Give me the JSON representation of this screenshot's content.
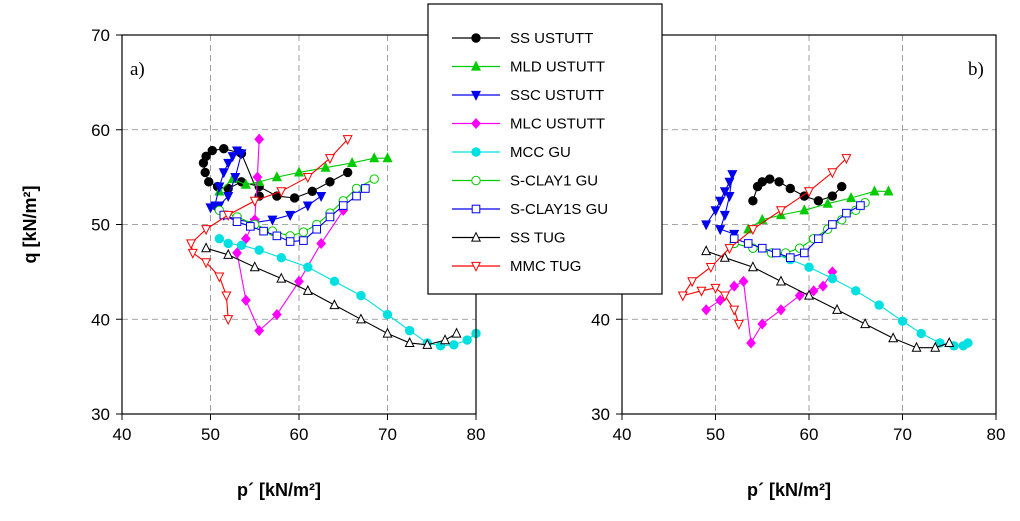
{
  "chart_data": [
    {
      "panel_label": "a)",
      "type": "line",
      "xlabel": "p´ [kN/m²]",
      "ylabel": "q [kN/m²]",
      "xlim": [
        40,
        80
      ],
      "ylim": [
        30,
        70
      ],
      "xticks": [
        "40",
        "50",
        "60",
        "70",
        "80"
      ],
      "yticks": [
        "30",
        "40",
        "50",
        "60",
        "70"
      ],
      "grid": true,
      "series": [
        {
          "name": "SS USTUTT",
          "color": "#000000",
          "marker": "circle",
          "filled": true,
          "x": [
            55.5,
            53.5,
            51.5,
            50.2,
            49.5,
            49.2,
            49.4,
            49.8,
            50.8,
            52.0,
            53.5,
            55.5,
            57.5,
            59.5,
            61.5,
            63.5,
            65.5
          ],
          "y": [
            53.0,
            57.5,
            58.0,
            57.8,
            57.2,
            56.5,
            55.5,
            54.5,
            54.0,
            53.8,
            54.5,
            54.0,
            53.0,
            52.8,
            53.5,
            54.5,
            55.5
          ]
        },
        {
          "name": "MLD USTUTT",
          "color": "#00cc00",
          "marker": "triangle",
          "filled": true,
          "x": [
            51.0,
            52.5,
            54.0,
            55.5,
            57.5,
            60.0,
            63.0,
            66.0,
            68.5,
            70.0
          ],
          "y": [
            53.5,
            54.8,
            54.2,
            54.5,
            55.0,
            55.5,
            56.0,
            56.5,
            57.0,
            57.0
          ]
        },
        {
          "name": "SSC USTUTT",
          "color": "#0000ee",
          "marker": "triangle-down",
          "filled": true,
          "x": [
            50.5,
            51.0,
            51.5,
            52.0,
            52.5,
            53.0,
            53.5,
            52.8,
            52.0,
            51.0,
            50.0,
            51.5,
            53.0,
            55.0,
            57.0,
            59.0,
            61.0,
            62.5
          ],
          "y": [
            52.0,
            54.0,
            55.5,
            56.5,
            57.2,
            57.8,
            57.5,
            55.0,
            53.0,
            52.0,
            51.8,
            51.0,
            50.5,
            50.2,
            50.5,
            51.0,
            52.0,
            53.0
          ]
        },
        {
          "name": "MLC USTUTT",
          "color": "#ff00ff",
          "marker": "diamond",
          "filled": true,
          "x": [
            55.5,
            55.3,
            55.0,
            54.0,
            53.0,
            54.0,
            55.5,
            57.5,
            60.0,
            62.5,
            65.0
          ],
          "y": [
            59.0,
            55.0,
            50.5,
            48.5,
            47.0,
            42.0,
            38.8,
            40.5,
            44.0,
            48.0,
            51.5
          ]
        },
        {
          "name": "MCC GU",
          "color": "#00e0e0",
          "marker": "circle",
          "filled": true,
          "x": [
            51.0,
            52.0,
            53.5,
            55.5,
            58.0,
            61.0,
            64.0,
            67.0,
            70.0,
            72.5,
            74.5,
            76.0,
            77.5,
            79.0,
            80.0
          ],
          "y": [
            48.5,
            48.0,
            47.8,
            47.3,
            46.5,
            45.5,
            44.0,
            42.5,
            40.5,
            38.8,
            37.5,
            37.2,
            37.3,
            37.8,
            38.5
          ]
        },
        {
          "name": "S-CLAY1 GU",
          "color": "#00cc00",
          "marker": "circle",
          "filled": false,
          "x": [
            51.0,
            53.0,
            55.0,
            57.0,
            59.0,
            60.5,
            62.0,
            63.5,
            65.0,
            66.5,
            68.5
          ],
          "y": [
            51.5,
            50.8,
            50.0,
            49.3,
            48.8,
            49.2,
            50.0,
            51.2,
            52.5,
            53.8,
            54.8
          ]
        },
        {
          "name": "S-CLAY1S GU",
          "color": "#0000ee",
          "marker": "square",
          "filled": false,
          "x": [
            51.5,
            53.0,
            54.5,
            56.0,
            57.5,
            59.0,
            60.5,
            62.0,
            63.5,
            65.0,
            66.5,
            67.5
          ],
          "y": [
            51.0,
            50.3,
            49.8,
            49.3,
            48.8,
            48.2,
            48.3,
            49.5,
            50.8,
            52.0,
            53.0,
            53.8
          ]
        },
        {
          "name": "SS TUG",
          "color": "#000000",
          "marker": "triangle",
          "filled": false,
          "x": [
            49.5,
            52.0,
            55.0,
            58.0,
            61.0,
            64.0,
            67.0,
            70.0,
            72.5,
            74.5,
            76.5,
            77.8
          ],
          "y": [
            47.5,
            46.8,
            45.5,
            44.3,
            43.0,
            41.5,
            40.0,
            38.5,
            37.5,
            37.3,
            37.8,
            38.5
          ]
        },
        {
          "name": "MMC TUG",
          "color": "#ff0000",
          "marker": "triangle-down",
          "filled": false,
          "x": [
            52.0,
            51.8,
            51.0,
            49.5,
            48.0,
            47.8,
            49.5,
            52.0,
            55.0,
            58.0,
            61.0,
            63.5,
            65.5
          ],
          "y": [
            40.0,
            42.5,
            44.5,
            46.0,
            47.0,
            48.0,
            49.5,
            51.0,
            52.5,
            53.5,
            55.0,
            57.0,
            59.0
          ]
        }
      ]
    },
    {
      "panel_label": "b)",
      "type": "line",
      "xlabel": "p´ [kN/m²]",
      "ylabel": "",
      "xlim": [
        40,
        80
      ],
      "ylim": [
        30,
        70
      ],
      "xticks": [
        "40",
        "50",
        "60",
        "70",
        "80"
      ],
      "yticks": [
        "30",
        "40",
        "50",
        "60",
        "70"
      ],
      "grid": true,
      "series": [
        {
          "name": "SS USTUTT",
          "color": "#000000",
          "marker": "circle",
          "filled": true,
          "x": [
            54.0,
            54.5,
            55.0,
            55.8,
            56.8,
            58.0,
            59.5,
            61.0,
            62.5,
            63.5
          ],
          "y": [
            52.5,
            54.0,
            54.5,
            54.8,
            54.5,
            53.8,
            53.0,
            52.5,
            53.0,
            54.0
          ]
        },
        {
          "name": "MLD USTUTT",
          "color": "#00cc00",
          "marker": "triangle",
          "filled": true,
          "x": [
            53.5,
            55.0,
            57.0,
            59.5,
            62.0,
            64.5,
            67.0,
            68.5
          ],
          "y": [
            49.5,
            50.5,
            51.0,
            51.5,
            52.2,
            52.8,
            53.5,
            53.5
          ]
        },
        {
          "name": "SSC USTUTT",
          "color": "#0000ee",
          "marker": "triangle-down",
          "filled": true,
          "x": [
            49.0,
            50.0,
            50.5,
            51.0,
            51.5,
            51.8,
            51.5,
            51.0,
            50.5,
            52.0
          ],
          "y": [
            50.0,
            51.5,
            52.5,
            53.5,
            54.5,
            55.3,
            53.0,
            51.0,
            49.5,
            49.0
          ]
        },
        {
          "name": "MLC USTUTT",
          "color": "#ff00ff",
          "marker": "diamond",
          "filled": true,
          "x": [
            49.0,
            50.5,
            52.0,
            53.0,
            53.8,
            55.0,
            57.0,
            59.0,
            60.5,
            61.5,
            62.5
          ],
          "y": [
            41.0,
            42.0,
            43.5,
            44.0,
            37.5,
            39.5,
            41.0,
            42.5,
            43.0,
            43.5,
            45.0
          ]
        },
        {
          "name": "MCC GU",
          "color": "#00e0e0",
          "marker": "circle",
          "filled": true,
          "x": [
            52.0,
            54.0,
            56.0,
            58.0,
            60.0,
            62.5,
            65.0,
            67.5,
            70.0,
            72.0,
            74.0,
            75.5,
            76.5,
            77.0
          ],
          "y": [
            48.0,
            47.5,
            47.0,
            46.3,
            45.5,
            44.3,
            43.0,
            41.5,
            39.8,
            38.5,
            37.5,
            37.2,
            37.2,
            37.5
          ]
        },
        {
          "name": "S-CLAY1 GU",
          "color": "#00cc00",
          "marker": "circle",
          "filled": false,
          "x": [
            52.0,
            54.0,
            56.0,
            57.5,
            59.0,
            60.5,
            62.0,
            63.5,
            65.0,
            66.0
          ],
          "y": [
            48.0,
            47.5,
            47.0,
            47.0,
            47.5,
            48.5,
            49.5,
            50.5,
            51.5,
            52.3
          ]
        },
        {
          "name": "S-CLAY1S GU",
          "color": "#0000ee",
          "marker": "square",
          "filled": false,
          "x": [
            52.0,
            53.5,
            55.0,
            56.5,
            58.0,
            59.5,
            61.0,
            62.5,
            64.0,
            65.5
          ],
          "y": [
            48.5,
            48.0,
            47.5,
            47.0,
            46.5,
            47.0,
            48.5,
            50.0,
            51.2,
            52.0
          ]
        },
        {
          "name": "SS TUG",
          "color": "#000000",
          "marker": "triangle",
          "filled": false,
          "x": [
            49.0,
            51.0,
            54.0,
            57.0,
            60.0,
            63.0,
            66.0,
            69.0,
            71.5,
            73.5,
            75.0
          ],
          "y": [
            47.2,
            46.5,
            45.5,
            44.0,
            42.5,
            41.0,
            39.5,
            38.0,
            37.0,
            37.0,
            37.5
          ]
        },
        {
          "name": "MMC TUG",
          "color": "#ff0000",
          "marker": "triangle-down",
          "filled": false,
          "x": [
            52.5,
            52.0,
            51.0,
            50.0,
            48.5,
            46.5,
            47.5,
            49.5,
            51.5,
            54.0,
            57.0,
            60.0,
            62.5,
            64.0
          ],
          "y": [
            39.5,
            41.0,
            42.5,
            43.3,
            43.0,
            42.5,
            44.0,
            45.5,
            47.5,
            49.5,
            51.5,
            53.5,
            55.5,
            57.0
          ]
        }
      ]
    }
  ]
}
